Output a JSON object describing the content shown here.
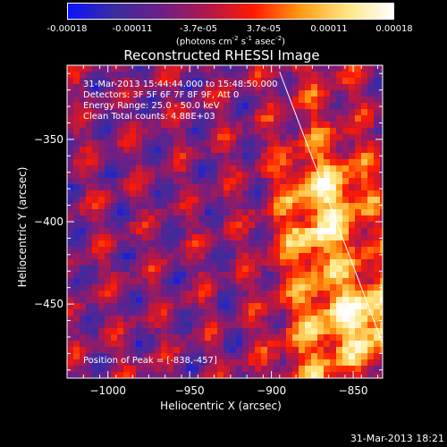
{
  "colorbar": {
    "ticks": [
      "-0.00018",
      "-0.00011",
      "-3.7e-05",
      "3.7e-05",
      "0.00011",
      "0.00018"
    ],
    "unit_html": "(photons cm<sup>-2</sup> s<sup>-1</sup> asec<sup>-2</sup>)",
    "range": [
      -0.00018,
      0.00018
    ],
    "colors": [
      "#0a14ff",
      "#3c2c9e",
      "#6b1f88",
      "#b0184a",
      "#ff1a00",
      "#ff9a14",
      "#ffe680",
      "#ffffff"
    ]
  },
  "chart_data": {
    "type": "heatmap",
    "title": "Reconstructed RHESSI Image",
    "xlabel": "Heliocentric X (arcsec)",
    "ylabel": "Heliocentric Y (arcsec)",
    "xlim": [
      -1025,
      -832
    ],
    "ylim": [
      -495,
      -305
    ],
    "xticks": [
      -1000,
      -950,
      -900,
      -850
    ],
    "yticks": [
      -350,
      -400,
      -450
    ],
    "annotations": {
      "time": "31-Mar-2013 15:44:44.000 to 15:48:50.000",
      "detectors": "Detectors: 3F 5F 6F 7F 8F 9F, Att 0",
      "energy": "Energy Range: 25.0 - 50.0 keV",
      "clean": "Clean    Total counts: 4.88E+03",
      "peak": "Position of Peak = [-838,-457]"
    },
    "peak_position": [
      -838,
      -457
    ],
    "total_counts": 4880,
    "energy_range_kev": [
      25.0,
      50.0
    ],
    "limb_line": {
      "from": [
        -895,
        -309
      ],
      "to": [
        -832,
        -474
      ]
    }
  },
  "timestamp": "31-Mar-2013 18:21"
}
